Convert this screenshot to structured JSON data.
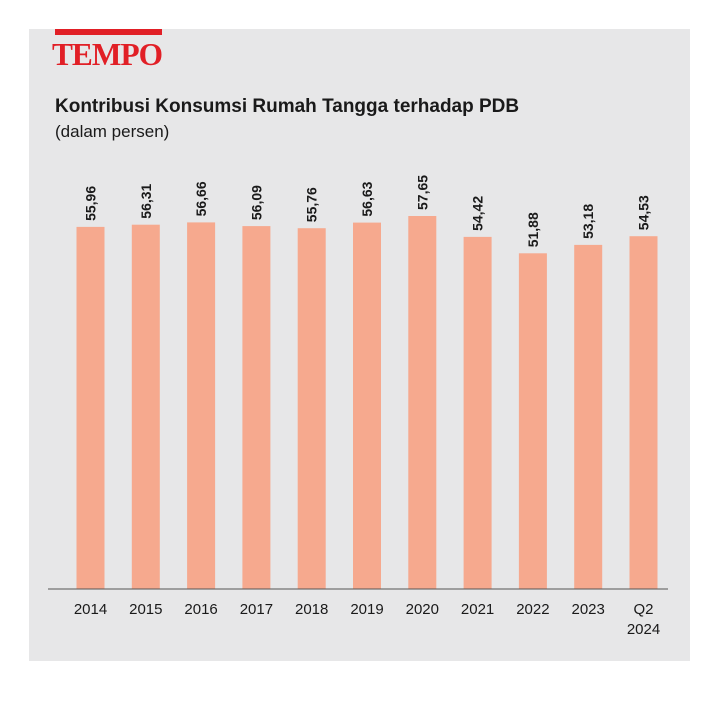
{
  "brand": {
    "logo_text": "TEMPO",
    "accent_color": "#e11f26"
  },
  "chart_data": {
    "type": "bar",
    "title": "Kontribusi Konsumsi Rumah Tangga terhadap PDB",
    "subtitle": "(dalam persen)",
    "categories": [
      "2014",
      "2015",
      "2016",
      "2017",
      "2018",
      "2019",
      "2020",
      "2021",
      "2022",
      "2023",
      "Q2 2024"
    ],
    "values": [
      55.96,
      56.31,
      56.66,
      56.09,
      55.76,
      56.63,
      57.65,
      54.42,
      51.88,
      53.18,
      54.53
    ],
    "value_labels": [
      "55,96",
      "56,31",
      "56,66",
      "56,09",
      "55,76",
      "56,63",
      "57,65",
      "54,42",
      "51,88",
      "53,18",
      "54,53"
    ],
    "bar_color": "#f6a98e",
    "grid": false,
    "legend": "none"
  }
}
